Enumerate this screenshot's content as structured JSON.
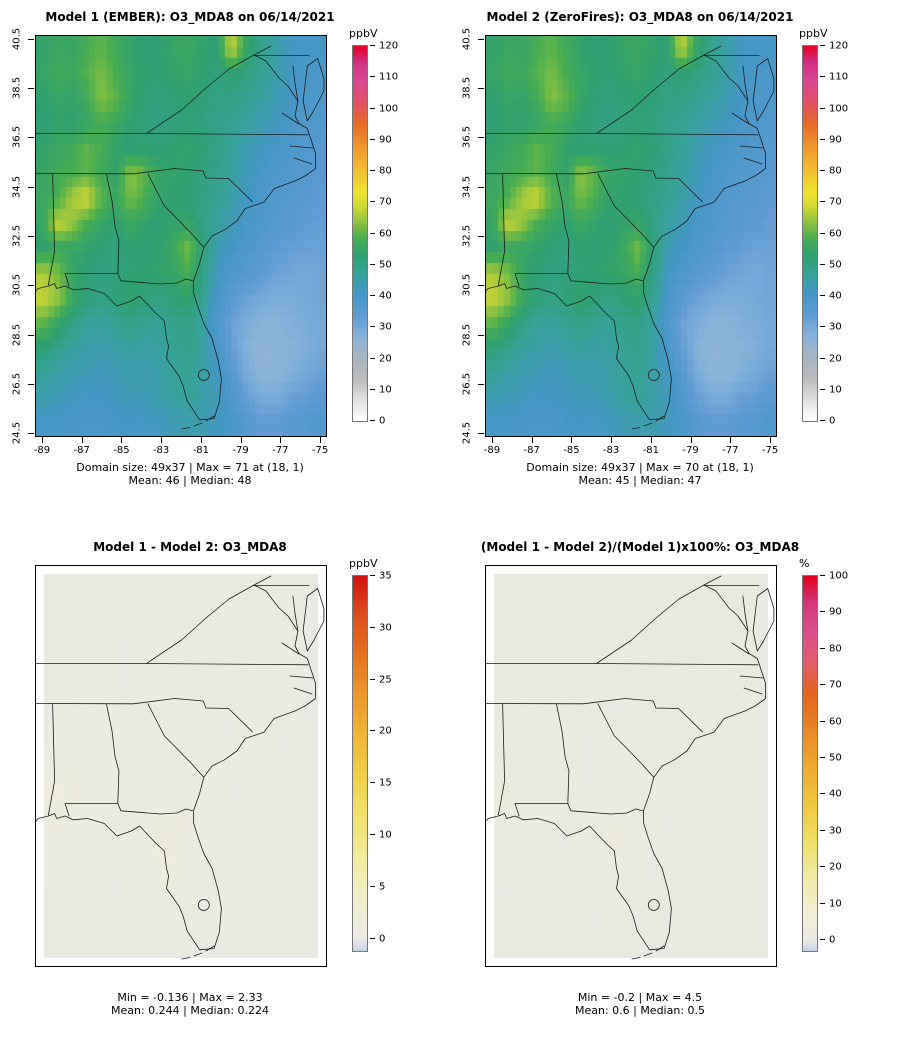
{
  "page": {
    "background": "#FFFFFF"
  },
  "grids": {
    "o3": [
      [
        54,
        56,
        55,
        58,
        60,
        57,
        54,
        52,
        53,
        55,
        56,
        54,
        52,
        68,
        55,
        49,
        45,
        42,
        40,
        41
      ],
      [
        55,
        57,
        56,
        59,
        62,
        58,
        55,
        53,
        52,
        54,
        55,
        53,
        51,
        53,
        51,
        48,
        45,
        42,
        40,
        39
      ],
      [
        53,
        55,
        54,
        57,
        63,
        60,
        55,
        52,
        51,
        52,
        53,
        52,
        50,
        50,
        48,
        46,
        44,
        41,
        39,
        38
      ],
      [
        52,
        54,
        53,
        55,
        58,
        56,
        53,
        51,
        50,
        51,
        52,
        51,
        49,
        48,
        46,
        44,
        42,
        40,
        38,
        37
      ],
      [
        54,
        56,
        57,
        60,
        58,
        54,
        52,
        53,
        52,
        53,
        54,
        52,
        50,
        47,
        44,
        42,
        40,
        38,
        37,
        36
      ],
      [
        55,
        57,
        58,
        60,
        57,
        54,
        64,
        60,
        55,
        54,
        53,
        51,
        49,
        46,
        43,
        40,
        38,
        37,
        36,
        35
      ],
      [
        56,
        58,
        66,
        69,
        60,
        56,
        62,
        58,
        54,
        53,
        52,
        50,
        48,
        45,
        42,
        39,
        37,
        36,
        35,
        34
      ],
      [
        55,
        68,
        64,
        58,
        55,
        53,
        56,
        54,
        52,
        54,
        55,
        50,
        46,
        43,
        40,
        38,
        36,
        35,
        34,
        33
      ],
      [
        53,
        56,
        55,
        54,
        52,
        51,
        53,
        52,
        53,
        56,
        62,
        52,
        44,
        41,
        38,
        36,
        34,
        33,
        32,
        32
      ],
      [
        66,
        62,
        55,
        52,
        50,
        51,
        52,
        53,
        54,
        55,
        58,
        50,
        42,
        38,
        36,
        34,
        32,
        31,
        30,
        31
      ],
      [
        68,
        64,
        56,
        52,
        50,
        52,
        54,
        52,
        50,
        52,
        54,
        48,
        40,
        35,
        32,
        30,
        29,
        29,
        30,
        31
      ],
      [
        60,
        55,
        50,
        47,
        46,
        48,
        50,
        48,
        47,
        49,
        50,
        46,
        38,
        32,
        29,
        27,
        27,
        28,
        29,
        30
      ],
      [
        52,
        49,
        46,
        45,
        44,
        45,
        46,
        45,
        46,
        48,
        49,
        46,
        40,
        33,
        28,
        25,
        26,
        27,
        28,
        30
      ],
      [
        47,
        45,
        44,
        43,
        42,
        43,
        44,
        44,
        45,
        47,
        48,
        45,
        42,
        36,
        30,
        26,
        26,
        28,
        30,
        32
      ],
      [
        44,
        43,
        42,
        41,
        41,
        42,
        43,
        43,
        44,
        46,
        47,
        45,
        43,
        38,
        33,
        30,
        30,
        32,
        33,
        35
      ],
      [
        41,
        40,
        40,
        39,
        39,
        40,
        41,
        41,
        42,
        43,
        44,
        44,
        42,
        40,
        36,
        34,
        34,
        35,
        36,
        38
      ]
    ],
    "diff": [
      [
        0.1,
        0.1,
        0.2,
        0.1,
        0.1,
        0.1,
        0.1,
        0.1,
        0.1,
        0.1
      ],
      [
        0.1,
        0.2,
        0.3,
        0.2,
        0.1,
        0.1,
        0.2,
        0.1,
        0.1,
        0.1
      ],
      [
        0.2,
        0.4,
        0.3,
        0.2,
        0.3,
        0.2,
        0.1,
        0.2,
        0.1,
        0.1
      ],
      [
        0.3,
        0.8,
        0.4,
        0.3,
        0.5,
        0.3,
        0.2,
        0.6,
        0.3,
        0.1
      ],
      [
        1.2,
        0.6,
        0.4,
        0.3,
        0.4,
        0.8,
        0.3,
        0.2,
        0.1,
        0.1
      ],
      [
        0.8,
        0.5,
        0.3,
        0.6,
        1.5,
        0.4,
        0.2,
        0.1,
        0.1,
        0.1
      ],
      [
        0.3,
        0.2,
        0.2,
        0.4,
        0.8,
        0.3,
        0.2,
        0.1,
        0.1,
        0.1
      ],
      [
        0.2,
        0.1,
        0.1,
        0.2,
        0.3,
        0.2,
        0.1,
        0.1,
        0.1,
        0.1
      ]
    ],
    "pct": [
      [
        0.2,
        0.2,
        0.4,
        0.2,
        0.2,
        0.2,
        0.2,
        0.2,
        0.2,
        0.2
      ],
      [
        0.2,
        0.4,
        0.6,
        0.4,
        0.2,
        0.2,
        0.4,
        0.2,
        0.2,
        0.2
      ],
      [
        0.4,
        0.8,
        0.6,
        0.4,
        0.6,
        0.4,
        0.2,
        0.4,
        0.2,
        0.2
      ],
      [
        0.6,
        1.6,
        0.8,
        0.6,
        1.0,
        0.6,
        0.4,
        1.2,
        0.6,
        0.2
      ],
      [
        2.4,
        1.2,
        0.8,
        0.6,
        0.8,
        1.6,
        0.6,
        0.4,
        0.2,
        0.2
      ],
      [
        1.6,
        1.0,
        0.6,
        1.2,
        3.0,
        0.8,
        0.4,
        0.2,
        0.2,
        0.2
      ],
      [
        0.6,
        0.4,
        0.4,
        0.8,
        1.6,
        0.6,
        0.4,
        0.2,
        0.2,
        0.2
      ],
      [
        0.4,
        0.2,
        0.2,
        0.4,
        0.6,
        0.4,
        0.2,
        0.2,
        0.2,
        0.2
      ]
    ]
  },
  "chart_data": [
    {
      "id": "model1",
      "type": "heatmap",
      "title": "Model 1 (EMBER): O3_MDA8 on 06/14/2021",
      "grid_ref": "o3",
      "domain_cols": 49,
      "domain_rows": 37,
      "x_axis": {
        "min": -89.3,
        "max": -74.7,
        "ticks": [
          -89,
          -87,
          -85,
          -83,
          -81,
          -79,
          -77,
          -75
        ]
      },
      "y_axis": {
        "min": 24.35,
        "max": 40.65,
        "ticks": [
          24.5,
          26.5,
          28.5,
          30.5,
          32.5,
          34.5,
          36.5,
          38.5,
          40.5
        ]
      },
      "colorbar": {
        "label": "ppbV",
        "min": 0,
        "max": 120,
        "ticks": [
          0,
          10,
          20,
          30,
          40,
          50,
          60,
          70,
          80,
          90,
          100,
          110,
          120
        ],
        "stops": [
          {
            "v": 0,
            "c": "#FFFFFF"
          },
          {
            "v": 6,
            "c": "#E3E3E3"
          },
          {
            "v": 13,
            "c": "#BDBDBD"
          },
          {
            "v": 20,
            "c": "#A8B4C2"
          },
          {
            "v": 27,
            "c": "#87B3D9"
          },
          {
            "v": 34,
            "c": "#5E9BD2"
          },
          {
            "v": 41,
            "c": "#4597C4"
          },
          {
            "v": 47,
            "c": "#37A29A"
          },
          {
            "v": 53,
            "c": "#2FA070"
          },
          {
            "v": 58,
            "c": "#46AC54"
          },
          {
            "v": 63,
            "c": "#85C041"
          },
          {
            "v": 68,
            "c": "#C9D632"
          },
          {
            "v": 73,
            "c": "#F0E22E"
          },
          {
            "v": 80,
            "c": "#F0C12E"
          },
          {
            "v": 88,
            "c": "#ED962B"
          },
          {
            "v": 95,
            "c": "#E76A28"
          },
          {
            "v": 102,
            "c": "#E25062"
          },
          {
            "v": 109,
            "c": "#DA4596"
          },
          {
            "v": 115,
            "c": "#D03082"
          },
          {
            "v": 120,
            "c": "#E8001F"
          }
        ]
      },
      "stats": {
        "line1": "Domain size: 49x37 | Max = 71 at (18, 1)",
        "line2": "Mean: 46 |  Median: 48"
      }
    },
    {
      "id": "model2",
      "type": "heatmap",
      "title": "Model 2 (ZeroFires): O3_MDA8 on 06/14/2021",
      "grid_ref": "o3",
      "domain_cols": 49,
      "domain_rows": 37,
      "x_axis": {
        "min": -89.3,
        "max": -74.7,
        "ticks": [
          -89,
          -87,
          -85,
          -83,
          -81,
          -79,
          -77,
          -75
        ]
      },
      "y_axis": {
        "min": 24.35,
        "max": 40.65,
        "ticks": [
          24.5,
          26.5,
          28.5,
          30.5,
          32.5,
          34.5,
          36.5,
          38.5,
          40.5
        ]
      },
      "colorbar": {
        "label": "ppbV",
        "min": 0,
        "max": 120,
        "ticks": [
          0,
          10,
          20,
          30,
          40,
          50,
          60,
          70,
          80,
          90,
          100,
          110,
          120
        ],
        "stops": [
          {
            "v": 0,
            "c": "#FFFFFF"
          },
          {
            "v": 6,
            "c": "#E3E3E3"
          },
          {
            "v": 13,
            "c": "#BDBDBD"
          },
          {
            "v": 20,
            "c": "#A8B4C2"
          },
          {
            "v": 27,
            "c": "#87B3D9"
          },
          {
            "v": 34,
            "c": "#5E9BD2"
          },
          {
            "v": 41,
            "c": "#4597C4"
          },
          {
            "v": 47,
            "c": "#37A29A"
          },
          {
            "v": 53,
            "c": "#2FA070"
          },
          {
            "v": 58,
            "c": "#46AC54"
          },
          {
            "v": 63,
            "c": "#85C041"
          },
          {
            "v": 68,
            "c": "#C9D632"
          },
          {
            "v": 73,
            "c": "#F0E22E"
          },
          {
            "v": 80,
            "c": "#F0C12E"
          },
          {
            "v": 88,
            "c": "#ED962B"
          },
          {
            "v": 95,
            "c": "#E76A28"
          },
          {
            "v": 102,
            "c": "#E25062"
          },
          {
            "v": 109,
            "c": "#DA4596"
          },
          {
            "v": 115,
            "c": "#D03082"
          },
          {
            "v": 120,
            "c": "#E8001F"
          }
        ]
      },
      "stats": {
        "line1": "Domain size: 49x37 | Max = 70 at (18, 1)",
        "line2": "Mean: 45 |  Median: 47"
      }
    },
    {
      "id": "diff",
      "type": "heatmap",
      "title": "Model 1 - Model 2: O3_MDA8",
      "grid_ref": "diff",
      "domain_cols": 49,
      "domain_rows": 37,
      "colorbar": {
        "label": "ppbV",
        "min": 0,
        "max": 35,
        "ticks": [
          0,
          5,
          10,
          15,
          20,
          25,
          30,
          35
        ],
        "stops": [
          {
            "v": 0,
            "c": "#EAEAE3"
          },
          {
            "v": 3,
            "c": "#F1EFD2"
          },
          {
            "v": 7,
            "c": "#F2ECA9"
          },
          {
            "v": 11,
            "c": "#F0E276"
          },
          {
            "v": 15,
            "c": "#EFD44B"
          },
          {
            "v": 19,
            "c": "#EDBB36"
          },
          {
            "v": 23,
            "c": "#EA9C2B"
          },
          {
            "v": 27,
            "c": "#E67722"
          },
          {
            "v": 31,
            "c": "#DE4F1C"
          },
          {
            "v": 35,
            "c": "#D31212"
          }
        ],
        "bar_stops": [
          {
            "v": -1.2,
            "c": "#C9D3EC"
          },
          {
            "v": 0,
            "c": "#EAEAE3"
          },
          {
            "v": 3,
            "c": "#F1EFD2"
          },
          {
            "v": 7,
            "c": "#F2ECA9"
          },
          {
            "v": 11,
            "c": "#F0E276"
          },
          {
            "v": 15,
            "c": "#EFD44B"
          },
          {
            "v": 19,
            "c": "#EDBB36"
          },
          {
            "v": 23,
            "c": "#EA9C2B"
          },
          {
            "v": 27,
            "c": "#E67722"
          },
          {
            "v": 31,
            "c": "#DE4F1C"
          },
          {
            "v": 35,
            "c": "#D31212"
          }
        ]
      },
      "stats": {
        "line1": "Min = -0.136 | Max = 2.33",
        "line2": "Mean: 0.244 |  Median: 0.224"
      }
    },
    {
      "id": "pctdiff",
      "type": "heatmap",
      "title": "(Model 1 - Model 2)/(Model 1)x100%: O3_MDA8",
      "grid_ref": "pct",
      "domain_cols": 49,
      "domain_rows": 37,
      "colorbar": {
        "label": "%",
        "min": 0,
        "max": 100,
        "ticks": [
          0,
          10,
          20,
          30,
          40,
          50,
          60,
          70,
          80,
          90,
          100
        ],
        "stops": [
          {
            "v": 0,
            "c": "#E9E9E2"
          },
          {
            "v": 8,
            "c": "#F1EFD2"
          },
          {
            "v": 18,
            "c": "#F1E9A0"
          },
          {
            "v": 28,
            "c": "#EFDC60"
          },
          {
            "v": 38,
            "c": "#EEC73C"
          },
          {
            "v": 48,
            "c": "#ECA92E"
          },
          {
            "v": 58,
            "c": "#E88525"
          },
          {
            "v": 68,
            "c": "#E4621F"
          },
          {
            "v": 76,
            "c": "#E0606A"
          },
          {
            "v": 85,
            "c": "#DA4E8E"
          },
          {
            "v": 93,
            "c": "#D23578"
          },
          {
            "v": 100,
            "c": "#E30017"
          }
        ],
        "bar_stops": [
          {
            "v": -3,
            "c": "#C9D3EC"
          },
          {
            "v": 0,
            "c": "#E9E9E2"
          },
          {
            "v": 8,
            "c": "#F1EFD2"
          },
          {
            "v": 18,
            "c": "#F1E9A0"
          },
          {
            "v": 28,
            "c": "#EFDC60"
          },
          {
            "v": 38,
            "c": "#EEC73C"
          },
          {
            "v": 48,
            "c": "#ECA92E"
          },
          {
            "v": 58,
            "c": "#E88525"
          },
          {
            "v": 68,
            "c": "#E4621F"
          },
          {
            "v": 76,
            "c": "#E0606A"
          },
          {
            "v": 85,
            "c": "#DA4E8E"
          },
          {
            "v": 93,
            "c": "#D23578"
          },
          {
            "v": 100,
            "c": "#E30017"
          }
        ]
      },
      "stats": {
        "line1": "Min = -0.2 | Max = 4.5",
        "line2": "Mean: 0.6 |  Median: 0.5"
      }
    }
  ]
}
